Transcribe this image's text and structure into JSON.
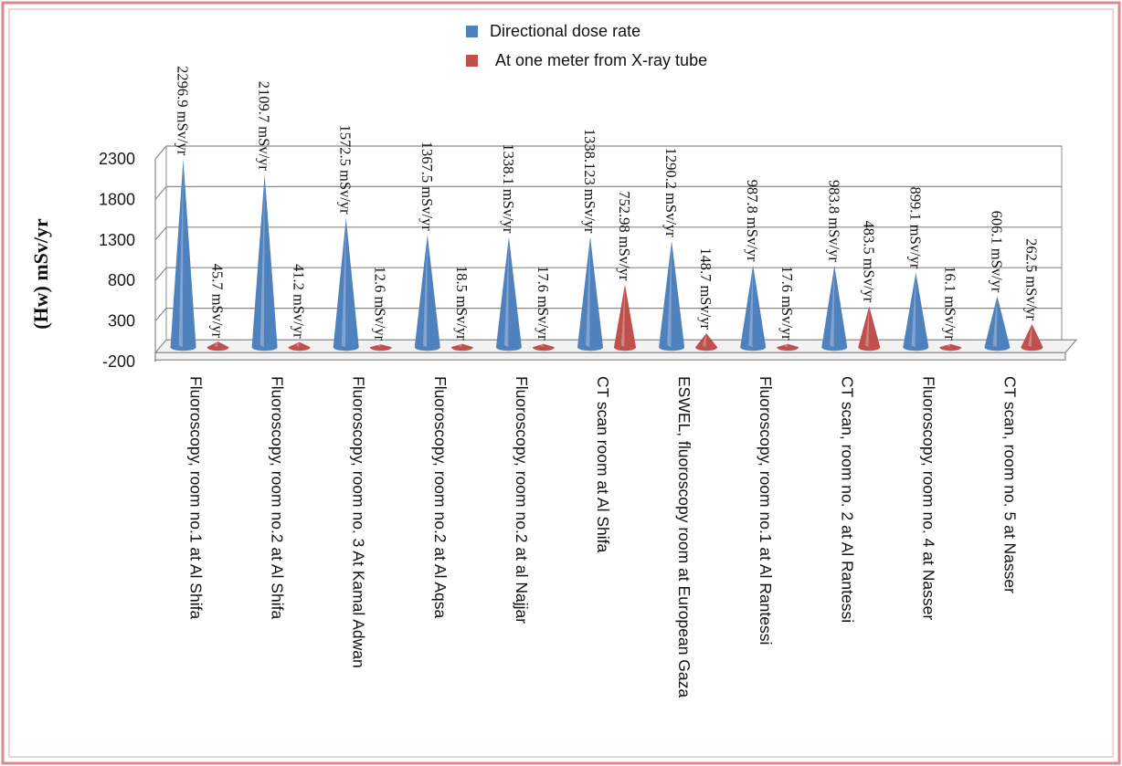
{
  "chart_data": {
    "type": "bar",
    "ylabel": "(Hw) mSv/yr",
    "ylim": [
      -200,
      2300
    ],
    "y_ticks": [
      "2300",
      "1800",
      "1300",
      "800",
      "300",
      "-200"
    ],
    "y_tick_values": [
      2300,
      1800,
      1300,
      800,
      300,
      -200
    ],
    "legend_position": "top",
    "categories": [
      "Fluoroscopy, room no.1 at Al Shifa",
      "Fluoroscopy, room no.2 at Al Shifa",
      "Fluoroscopy, room no. 3 At Kamal Adwan",
      "Fluoroscopy, room no.2 at Al Aqsa",
      "Fluoroscopy, room no.2 at al Najjar",
      "CT scan room at Al Shifa",
      "ESWEL, fluoroscopy room at European Gaza",
      "Fluoroscopy, room no.1 at Al Rantessi",
      "CT scan, room no. 2 at Al Rantessi",
      "Fluoroscopy, room no. 4 at Nasser",
      "CT scan, room no. 5 at Nasser"
    ],
    "series": [
      {
        "name": "Directional dose rate",
        "color": "#4f81bd",
        "values": [
          2296.9,
          2109.7,
          1572.5,
          1367.5,
          1338.1,
          1338.123,
          1290.2,
          987.8,
          983.8,
          899.1,
          606.1
        ],
        "labels": [
          "2296.9 mSv/yr",
          "2109.7 mSv/yr",
          "1572.5 mSv/yr",
          "1367.5 mSv/yr",
          "1338.1 mSv/yr",
          "1338.123 mSv/yr",
          "1290.2 mSv/yr",
          "987.8 mSv/yr",
          "983.8 mSv/yr",
          "899.1 mSv/yr",
          "606.1 mSv/yr"
        ]
      },
      {
        "name": "At one meter from X-ray tube",
        "color": "#c0504d",
        "values": [
          45.7,
          41.2,
          12.6,
          18.5,
          17.6,
          752.98,
          148.7,
          17.6,
          483.5,
          16.1,
          262.5
        ],
        "labels": [
          "45.7 mSv/yr",
          "41.2 mSv/yr",
          "12.6 mSv/yr",
          "18.5 mSv/yr",
          "17.6 mSv/yr",
          "752.98 mSv/yr",
          "148.7 mSv/yr",
          "17.6 mSv/yr",
          "483.5 mSv/yr",
          "16.1 mSv/yr",
          "262.5 mSv/yr"
        ]
      }
    ]
  }
}
